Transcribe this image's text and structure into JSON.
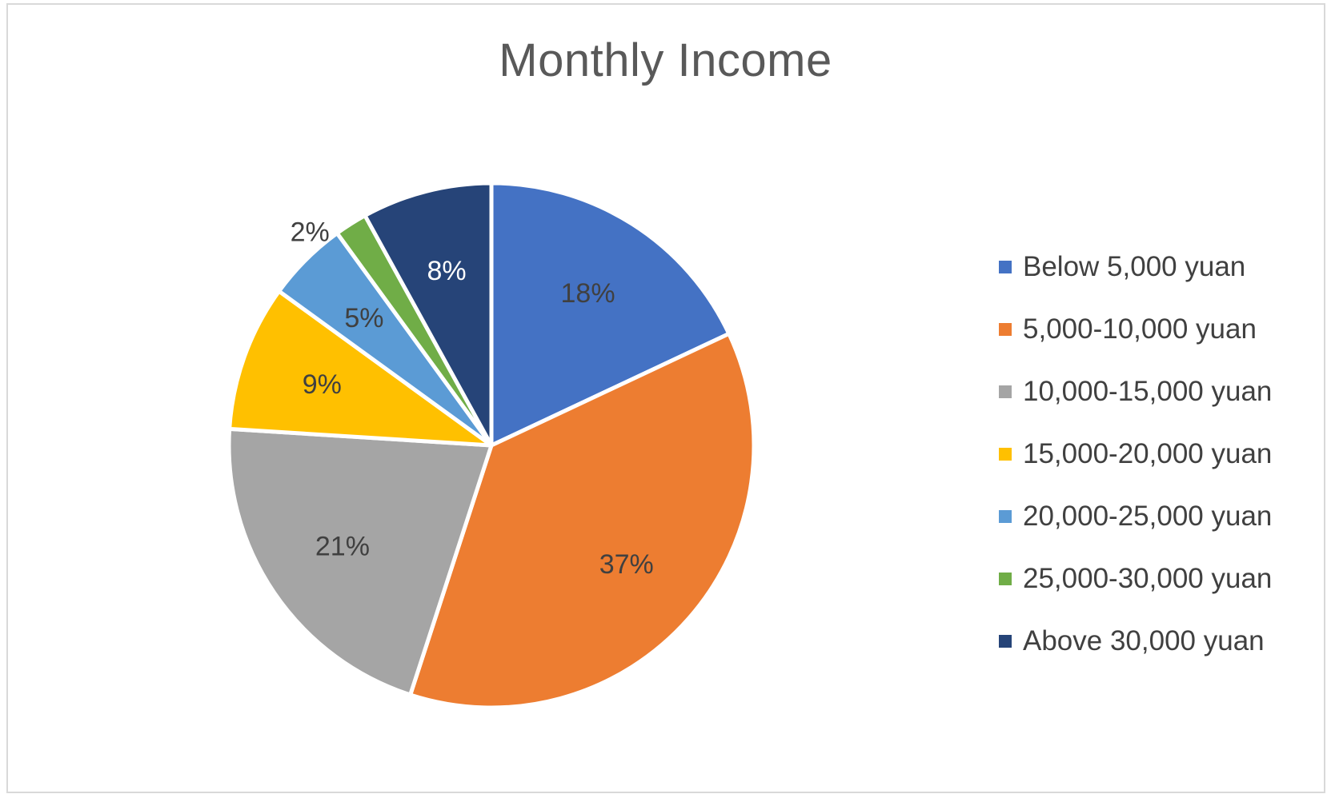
{
  "chart_data": {
    "type": "pie",
    "title": "Monthly Income",
    "legend_position": "right",
    "categories": [
      "Below 5,000 yuan",
      "5,000-10,000 yuan",
      "10,000-15,000 yuan",
      "15,000-20,000 yuan",
      "20,000-25,000 yuan",
      "25,000-30,000 yuan",
      "Above 30,000 yuan"
    ],
    "values": [
      18,
      37,
      21,
      9,
      5,
      2,
      8
    ],
    "labels": [
      "18%",
      "37%",
      "21%",
      "9%",
      "5%",
      "2%",
      "8%"
    ],
    "colors": [
      "#4472C4",
      "#ED7D31",
      "#A5A5A5",
      "#FFC000",
      "#5B9BD5",
      "#70AD47",
      "#264478"
    ],
    "label_colors": [
      "#404040",
      "#404040",
      "#404040",
      "#404040",
      "#404040",
      "#404040",
      "#ffffff"
    ]
  }
}
